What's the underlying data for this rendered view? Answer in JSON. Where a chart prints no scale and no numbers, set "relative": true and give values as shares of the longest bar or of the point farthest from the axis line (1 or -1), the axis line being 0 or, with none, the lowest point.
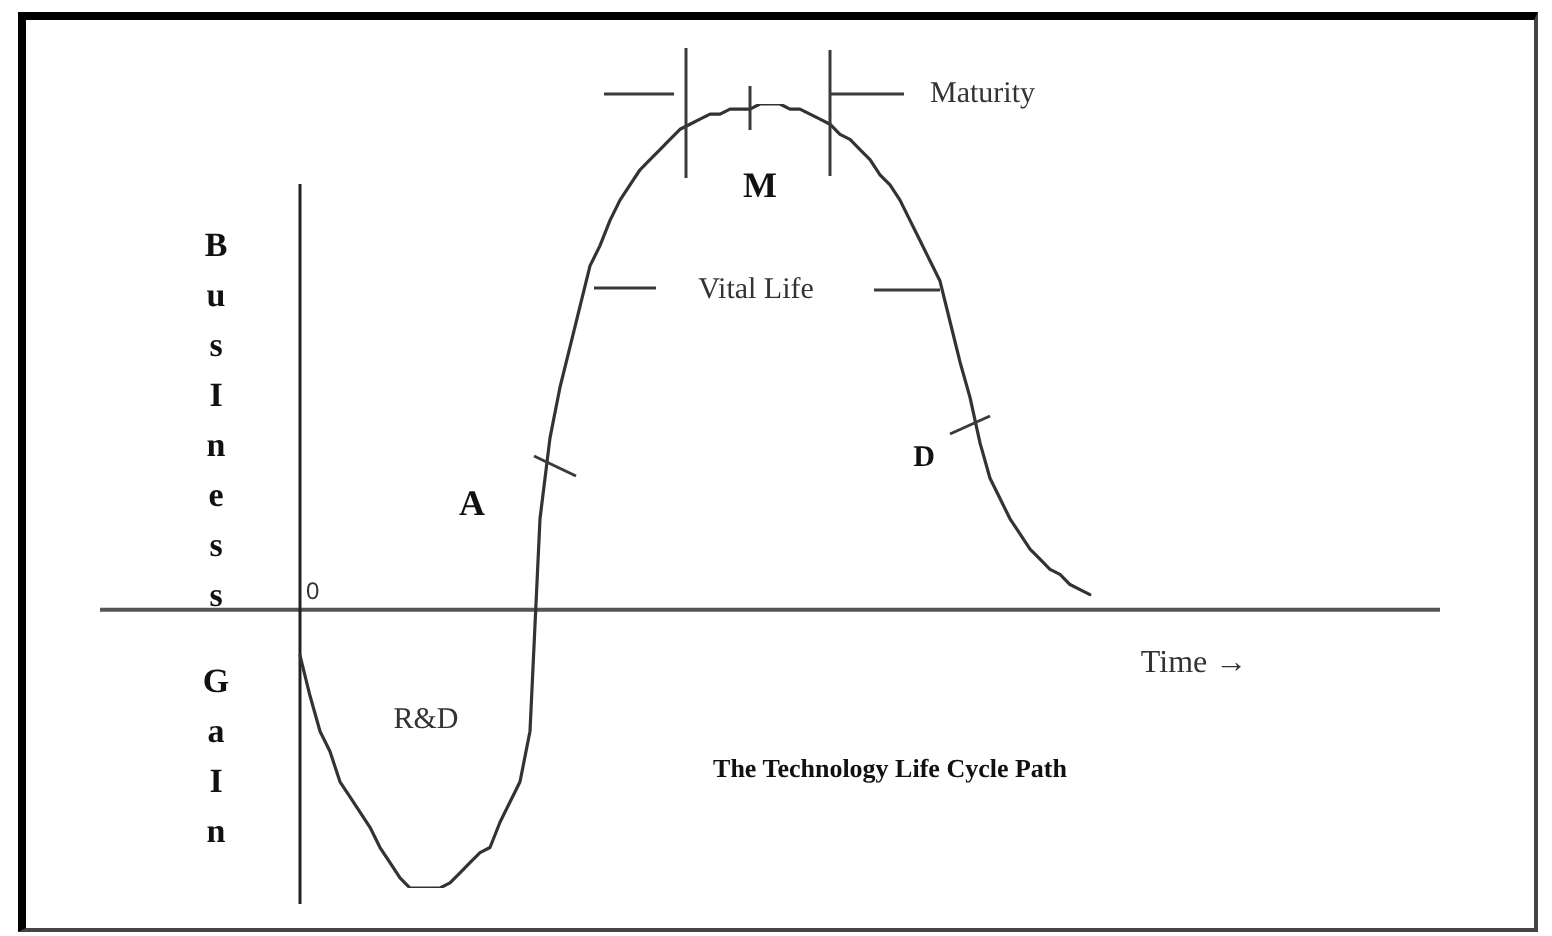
{
  "chart_data": {
    "type": "line",
    "relative": true,
    "title": "The Technology Life Cycle Path",
    "xlabel": "Time →",
    "ylabel": "BusIness GaIn",
    "color": "#333333",
    "categories": [
      null,
      null,
      null,
      null,
      null,
      null,
      null,
      null,
      null,
      null,
      null,
      null,
      null,
      null,
      null,
      null,
      null,
      null,
      null,
      null,
      null,
      null,
      null,
      null,
      null,
      null,
      null,
      null,
      null,
      null,
      null,
      null,
      null,
      null,
      null,
      null,
      null,
      null,
      null,
      null,
      null,
      null,
      null,
      null,
      null,
      null,
      null,
      null,
      null,
      null,
      null,
      null,
      null,
      null,
      null,
      null,
      null,
      null,
      null,
      null,
      null,
      null,
      null,
      null,
      null,
      null,
      null,
      null,
      null,
      null,
      null,
      null,
      null,
      null,
      null,
      null,
      null,
      null,
      null,
      null
    ],
    "values": [
      -0.09,
      -0.17,
      -0.24,
      -0.28,
      -0.34,
      -0.37,
      -0.4,
      -0.43,
      -0.47,
      -0.5,
      -0.53,
      -0.55,
      -0.55,
      -0.55,
      -0.55,
      -0.54,
      -0.52,
      -0.5,
      -0.48,
      -0.47,
      -0.42,
      -0.38,
      -0.34,
      -0.24,
      0.18,
      0.34,
      0.44,
      0.52,
      0.6,
      0.68,
      0.72,
      0.77,
      0.81,
      0.84,
      0.87,
      0.89,
      0.91,
      0.93,
      0.95,
      0.96,
      0.97,
      0.98,
      0.98,
      0.99,
      0.99,
      0.99,
      1,
      1,
      1,
      0.99,
      0.99,
      0.98,
      0.97,
      0.96,
      0.94,
      0.93,
      0.91,
      0.89,
      0.86,
      0.84,
      0.81,
      0.77,
      0.73,
      0.69,
      0.65,
      0.57,
      0.49,
      0.42,
      0.33,
      0.26,
      0.22,
      0.18,
      0.15,
      0.12,
      0.1,
      0.08,
      0.07,
      0.05,
      0.04,
      0.03
    ],
    "annotations": [
      "Maturity",
      "M",
      "Vital Life",
      "A",
      "D",
      "R&D",
      "0"
    ]
  }
}
